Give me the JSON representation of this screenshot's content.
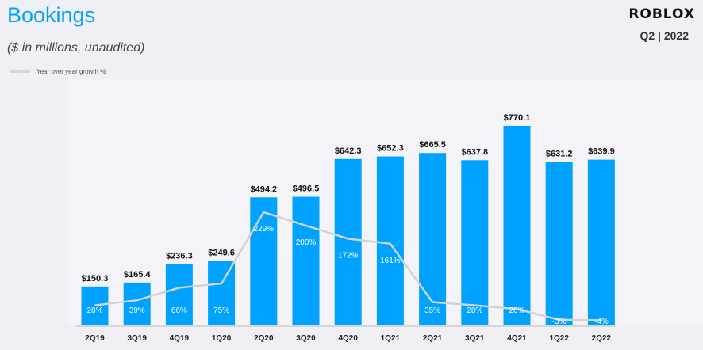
{
  "header": {
    "title": "Bookings",
    "subtitle": "($ in millions,  unaudited)",
    "logo_text": "ROBLOX",
    "period": "Q2 | 2022"
  },
  "colors": {
    "bar": "#00a2ff",
    "line": "#d3d3d3",
    "title": "#00a2ff"
  },
  "chart_data": {
    "type": "bar",
    "title": "Bookings",
    "categories": [
      "2Q19",
      "3Q19",
      "4Q19",
      "1Q20",
      "2Q20",
      "3Q20",
      "4Q20",
      "1Q21",
      "2Q21",
      "3Q21",
      "4Q21",
      "1Q22",
      "2Q22"
    ],
    "series": [
      {
        "values": [
          150.3,
          165.4,
          236.3,
          249.6,
          494.2,
          496.5,
          642.3,
          652.3,
          665.5,
          637.8,
          770.1,
          631.2,
          639.9
        ],
        "labels": [
          "$150.3",
          "$165.4",
          "$236.3",
          "$249.6",
          "$494.2",
          "$496.5",
          "$642.3",
          "$652.3",
          "$665.5",
          "$637.8",
          "$770.1",
          "$631.2",
          "$639.9"
        ]
      },
      {
        "name": "Year over year growth %",
        "type": "line",
        "values": [
          28,
          39,
          66,
          75,
          229,
          200,
          172,
          161,
          35,
          28,
          20,
          -3,
          -4
        ],
        "labels": [
          "28%",
          "39%",
          "66%",
          "75%",
          "229%",
          "200%",
          "172%",
          "161%",
          "35%",
          "28%",
          "20%",
          "-3%",
          "-4%"
        ]
      }
    ],
    "ylim": [
      0,
      800
    ],
    "legend": "top-left",
    "grid": false
  }
}
